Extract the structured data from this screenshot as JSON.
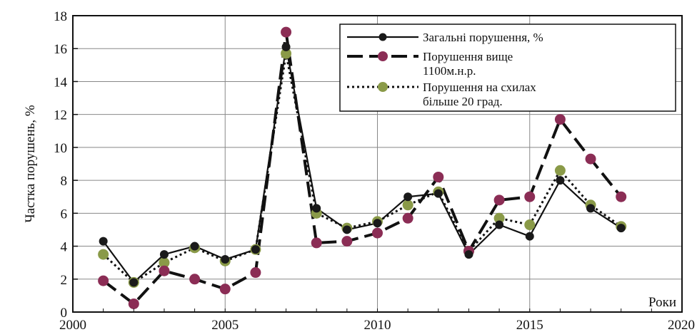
{
  "chart_data": {
    "type": "line",
    "title": "",
    "xlabel": "Роки",
    "ylabel": "Частка порушень, %",
    "xlim": [
      2000,
      2020
    ],
    "ylim": [
      0,
      18
    ],
    "x_ticks": [
      2000,
      2005,
      2010,
      2015,
      2020
    ],
    "y_ticks": [
      0,
      2,
      4,
      6,
      8,
      10,
      12,
      14,
      16,
      18
    ],
    "grid": true,
    "legend_position": "top-right",
    "x": [
      2001,
      2002,
      2003,
      2004,
      2005,
      2006,
      2007,
      2008,
      2009,
      2010,
      2011,
      2012,
      2013,
      2014,
      2015,
      2016,
      2017,
      2018
    ],
    "series": [
      {
        "name": "Загальні порушення, %",
        "line_style": "solid",
        "marker_color": "#1a1a1a",
        "values": [
          4.3,
          1.8,
          3.5,
          4.0,
          3.2,
          3.8,
          16.1,
          6.3,
          5.0,
          5.4,
          7.0,
          7.2,
          3.5,
          5.3,
          4.6,
          8.0,
          6.3,
          5.1
        ]
      },
      {
        "name": "Порушення вище 1100м.н.р.",
        "line_style": "dashed",
        "marker_color": "#8b2d55",
        "values": [
          1.9,
          0.5,
          2.5,
          2.0,
          1.4,
          2.4,
          17.0,
          4.2,
          4.3,
          4.8,
          5.7,
          8.2,
          3.7,
          6.8,
          7.0,
          11.7,
          9.3,
          7.0
        ]
      },
      {
        "name": "Порушення на схилах більше 20 град.",
        "line_style": "dotted",
        "marker_color": "#8a9a48",
        "values": [
          3.5,
          1.8,
          3.0,
          3.9,
          3.1,
          3.8,
          15.7,
          6.0,
          5.1,
          5.5,
          6.5,
          7.3,
          3.7,
          5.7,
          5.3,
          8.6,
          6.5,
          5.2
        ]
      }
    ]
  }
}
